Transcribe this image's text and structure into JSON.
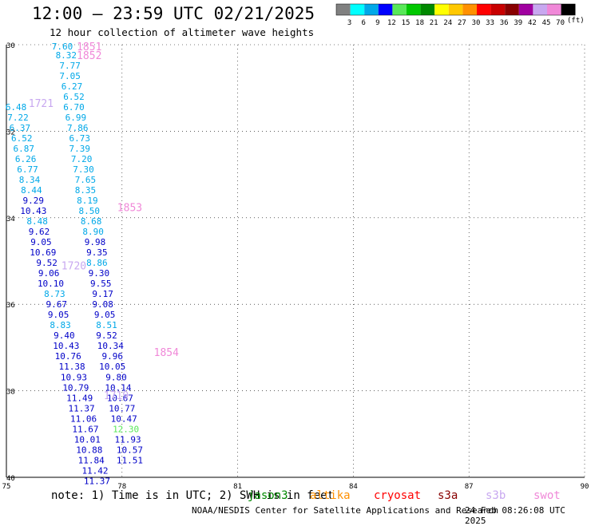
{
  "title": "12:00 — 23:59 UTC 02/21/2025",
  "subtitle": "12 hour collection of altimeter wave heights",
  "legend": {
    "unit": "(ft)",
    "bins": [
      {
        "label": "3",
        "color": "#808080"
      },
      {
        "label": "6",
        "color": "#00ffff"
      },
      {
        "label": "9",
        "color": "#00a8e8"
      },
      {
        "label": "12",
        "color": "#0000ff"
      },
      {
        "label": "15",
        "color": "#58e858"
      },
      {
        "label": "18",
        "color": "#00c800"
      },
      {
        "label": "21",
        "color": "#008800"
      },
      {
        "label": "24",
        "color": "#ffff00"
      },
      {
        "label": "27",
        "color": "#ffc800"
      },
      {
        "label": "30",
        "color": "#ff9000"
      },
      {
        "label": "33",
        "color": "#ff0000"
      },
      {
        "label": "36",
        "color": "#c80000"
      },
      {
        "label": "39",
        "color": "#880000"
      },
      {
        "label": "42",
        "color": "#a000a0"
      },
      {
        "label": "45",
        "color": "#c8a8f0"
      },
      {
        "label": "70",
        "color": "#f088d8"
      },
      {
        "label": "",
        "color": "#000000"
      }
    ]
  },
  "axes": {
    "lon_ticks": [
      "75",
      "78",
      "81",
      "84",
      "87",
      "90"
    ],
    "lat_ticks": [
      "30",
      "32",
      "34",
      "36",
      "38",
      "40"
    ],
    "lon_range": [
      75,
      90
    ],
    "lat_range": [
      -30,
      -40
    ]
  },
  "colors": {
    "light_blue": "#00a8e8",
    "blue": "#0000c8",
    "green": "#58e858",
    "pink": "#f088d8",
    "lavender": "#c8a8f0"
  },
  "tracks": [
    {
      "id": "1851",
      "color": "#f088d8",
      "label_pos": [
        77.15,
        -30.04
      ]
    },
    {
      "id": "1852",
      "color": "#f088d8",
      "label_pos": [
        77.15,
        -30.24
      ]
    },
    {
      "id": "1721",
      "color": "#c8a8f0",
      "label_pos": [
        75.9,
        -31.35
      ]
    },
    {
      "id": "1853",
      "color": "#f088d8",
      "label_pos": [
        78.2,
        -33.75
      ]
    },
    {
      "id": "1720",
      "color": "#c8a8f0",
      "label_pos": [
        76.75,
        -35.1
      ]
    },
    {
      "id": "1854",
      "color": "#f088d8",
      "label_pos": [
        79.15,
        -37.1
      ]
    },
    {
      "id": "1719",
      "color": "#c8a8f0",
      "label_pos": [
        77.85,
        -38.1
      ]
    }
  ],
  "observations": [
    {
      "v": "7.60",
      "lon": 76.45,
      "lat": -30.04,
      "c": "#00a8e8"
    },
    {
      "v": "8.32",
      "lon": 76.55,
      "lat": -30.24,
      "c": "#00a8e8"
    },
    {
      "v": "7.77",
      "lon": 76.65,
      "lat": -30.48,
      "c": "#00a8e8"
    },
    {
      "v": "7.05",
      "lon": 76.65,
      "lat": -30.72,
      "c": "#00a8e8"
    },
    {
      "v": "6.27",
      "lon": 76.7,
      "lat": -30.96,
      "c": "#00a8e8"
    },
    {
      "v": "6.52",
      "lon": 76.75,
      "lat": -31.2,
      "c": "#00a8e8"
    },
    {
      "v": "6.70",
      "lon": 76.75,
      "lat": -31.44,
      "c": "#00a8e8"
    },
    {
      "v": "6.99",
      "lon": 76.8,
      "lat": -31.68,
      "c": "#00a8e8"
    },
    {
      "v": "7.86",
      "lon": 76.85,
      "lat": -31.92,
      "c": "#00a8e8"
    },
    {
      "v": "6.73",
      "lon": 76.9,
      "lat": -32.16,
      "c": "#00a8e8"
    },
    {
      "v": "7.39",
      "lon": 76.9,
      "lat": -32.4,
      "c": "#00a8e8"
    },
    {
      "v": "7.20",
      "lon": 76.95,
      "lat": -32.64,
      "c": "#00a8e8"
    },
    {
      "v": "7.30",
      "lon": 77.0,
      "lat": -32.88,
      "c": "#00a8e8"
    },
    {
      "v": "7.65",
      "lon": 77.05,
      "lat": -33.12,
      "c": "#00a8e8"
    },
    {
      "v": "8.35",
      "lon": 77.05,
      "lat": -33.36,
      "c": "#00a8e8"
    },
    {
      "v": "8.19",
      "lon": 77.1,
      "lat": -33.6,
      "c": "#00a8e8"
    },
    {
      "v": "8.50",
      "lon": 77.15,
      "lat": -33.84,
      "c": "#00a8e8"
    },
    {
      "v": "8.68",
      "lon": 77.2,
      "lat": -34.08,
      "c": "#00a8e8"
    },
    {
      "v": "8.90",
      "lon": 77.25,
      "lat": -34.32,
      "c": "#00a8e8"
    },
    {
      "v": "9.98",
      "lon": 77.3,
      "lat": -34.56,
      "c": "#0000c8"
    },
    {
      "v": "9.35",
      "lon": 77.35,
      "lat": -34.8,
      "c": "#0000c8"
    },
    {
      "v": "8.86",
      "lon": 77.35,
      "lat": -35.04,
      "c": "#00a8e8"
    },
    {
      "v": "9.30",
      "lon": 77.4,
      "lat": -35.28,
      "c": "#0000c8"
    },
    {
      "v": "9.55",
      "lon": 77.45,
      "lat": -35.52,
      "c": "#0000c8"
    },
    {
      "v": "9.17",
      "lon": 77.5,
      "lat": -35.76,
      "c": "#0000c8"
    },
    {
      "v": "9.08",
      "lon": 77.5,
      "lat": -36.0,
      "c": "#0000c8"
    },
    {
      "v": "9.05",
      "lon": 77.55,
      "lat": -36.24,
      "c": "#0000c8"
    },
    {
      "v": "8.51",
      "lon": 77.6,
      "lat": -36.48,
      "c": "#00a8e8"
    },
    {
      "v": "9.52",
      "lon": 77.6,
      "lat": -36.72,
      "c": "#0000c8"
    },
    {
      "v": "10.34",
      "lon": 77.7,
      "lat": -36.96,
      "c": "#0000c8"
    },
    {
      "v": "9.96",
      "lon": 77.75,
      "lat": -37.2,
      "c": "#0000c8"
    },
    {
      "v": "10.05",
      "lon": 77.75,
      "lat": -37.44,
      "c": "#0000c8"
    },
    {
      "v": "9.80",
      "lon": 77.85,
      "lat": -37.68,
      "c": "#0000c8"
    },
    {
      "v": "10.14",
      "lon": 77.9,
      "lat": -37.92,
      "c": "#0000c8"
    },
    {
      "v": "10.67",
      "lon": 77.95,
      "lat": -38.16,
      "c": "#0000c8"
    },
    {
      "v": "10.77",
      "lon": 78.0,
      "lat": -38.4,
      "c": "#0000c8"
    },
    {
      "v": "10.47",
      "lon": 78.05,
      "lat": -38.64,
      "c": "#0000c8"
    },
    {
      "v": "12.30",
      "lon": 78.1,
      "lat": -38.88,
      "c": "#58e858"
    },
    {
      "v": "11.93",
      "lon": 78.15,
      "lat": -39.12,
      "c": "#0000c8"
    },
    {
      "v": "10.57",
      "lon": 78.2,
      "lat": -39.36,
      "c": "#0000c8"
    },
    {
      "v": "11.51",
      "lon": 78.2,
      "lat": -39.6,
      "c": "#0000c8"
    },
    {
      "v": "6.48",
      "lon": 75.25,
      "lat": -31.44,
      "c": "#00a8e8"
    },
    {
      "v": "7.22",
      "lon": 75.3,
      "lat": -31.68,
      "c": "#00a8e8"
    },
    {
      "v": "6.37",
      "lon": 75.35,
      "lat": -31.92,
      "c": "#00a8e8"
    },
    {
      "v": "6.52",
      "lon": 75.4,
      "lat": -32.16,
      "c": "#00a8e8"
    },
    {
      "v": "6.87",
      "lon": 75.45,
      "lat": -32.4,
      "c": "#00a8e8"
    },
    {
      "v": "6.26",
      "lon": 75.5,
      "lat": -32.64,
      "c": "#00a8e8"
    },
    {
      "v": "6.77",
      "lon": 75.55,
      "lat": -32.88,
      "c": "#00a8e8"
    },
    {
      "v": "8.34",
      "lon": 75.6,
      "lat": -33.12,
      "c": "#00a8e8"
    },
    {
      "v": "8.44",
      "lon": 75.65,
      "lat": -33.36,
      "c": "#00a8e8"
    },
    {
      "v": "9.29",
      "lon": 75.7,
      "lat": -33.6,
      "c": "#0000c8"
    },
    {
      "v": "10.43",
      "lon": 75.7,
      "lat": -33.84,
      "c": "#0000c8"
    },
    {
      "v": "8.48",
      "lon": 75.8,
      "lat": -34.08,
      "c": "#00a8e8"
    },
    {
      "v": "9.62",
      "lon": 75.85,
      "lat": -34.32,
      "c": "#0000c8"
    },
    {
      "v": "9.05",
      "lon": 75.9,
      "lat": -34.56,
      "c": "#0000c8"
    },
    {
      "v": "10.69",
      "lon": 75.95,
      "lat": -34.8,
      "c": "#0000c8"
    },
    {
      "v": "9.52",
      "lon": 76.05,
      "lat": -35.04,
      "c": "#0000c8"
    },
    {
      "v": "9.06",
      "lon": 76.1,
      "lat": -35.28,
      "c": "#0000c8"
    },
    {
      "v": "10.10",
      "lon": 76.15,
      "lat": -35.52,
      "c": "#0000c8"
    },
    {
      "v": "8.73",
      "lon": 76.25,
      "lat": -35.76,
      "c": "#00a8e8"
    },
    {
      "v": "9.67",
      "lon": 76.3,
      "lat": -36.0,
      "c": "#0000c8"
    },
    {
      "v": "9.05",
      "lon": 76.35,
      "lat": -36.24,
      "c": "#0000c8"
    },
    {
      "v": "8.83",
      "lon": 76.4,
      "lat": -36.48,
      "c": "#00a8e8"
    },
    {
      "v": "9.40",
      "lon": 76.5,
      "lat": -36.72,
      "c": "#0000c8"
    },
    {
      "v": "10.43",
      "lon": 76.55,
      "lat": -36.96,
      "c": "#0000c8"
    },
    {
      "v": "10.76",
      "lon": 76.6,
      "lat": -37.2,
      "c": "#0000c8"
    },
    {
      "v": "11.38",
      "lon": 76.7,
      "lat": -37.44,
      "c": "#0000c8"
    },
    {
      "v": "10.93",
      "lon": 76.75,
      "lat": -37.68,
      "c": "#0000c8"
    },
    {
      "v": "10.79",
      "lon": 76.8,
      "lat": -37.92,
      "c": "#0000c8"
    },
    {
      "v": "11.49",
      "lon": 76.9,
      "lat": -38.16,
      "c": "#0000c8"
    },
    {
      "v": "11.37",
      "lon": 76.95,
      "lat": -38.4,
      "c": "#0000c8"
    },
    {
      "v": "11.06",
      "lon": 77.0,
      "lat": -38.64,
      "c": "#0000c8"
    },
    {
      "v": "11.67",
      "lon": 77.05,
      "lat": -38.88,
      "c": "#0000c8"
    },
    {
      "v": "10.01",
      "lon": 77.1,
      "lat": -39.12,
      "c": "#0000c8"
    },
    {
      "v": "10.88",
      "lon": 77.15,
      "lat": -39.36,
      "c": "#0000c8"
    },
    {
      "v": "11.84",
      "lon": 77.2,
      "lat": -39.6,
      "c": "#0000c8"
    },
    {
      "v": "11.42",
      "lon": 77.3,
      "lat": -39.84,
      "c": "#0000c8"
    },
    {
      "v": "11.37",
      "lon": 77.35,
      "lat": -40.08,
      "c": "#0000c8"
    }
  ],
  "footer": {
    "note": "note:  1) Time is in UTC; 2) SWH is in feet",
    "credit": "NOAA/NESDIS Center for Satellite Applications and Research",
    "date": "24 Feb 08:26:08 UTC 2025",
    "satellites": [
      {
        "name": "jason3",
        "color": "#008800"
      },
      {
        "name": "altika",
        "color": "#ff9000"
      },
      {
        "name": "cryosat",
        "color": "#ff0000"
      },
      {
        "name": "s3a",
        "color": "#880000"
      },
      {
        "name": "s3b",
        "color": "#c8a8f0"
      },
      {
        "name": "swot",
        "color": "#f088d8"
      }
    ]
  }
}
